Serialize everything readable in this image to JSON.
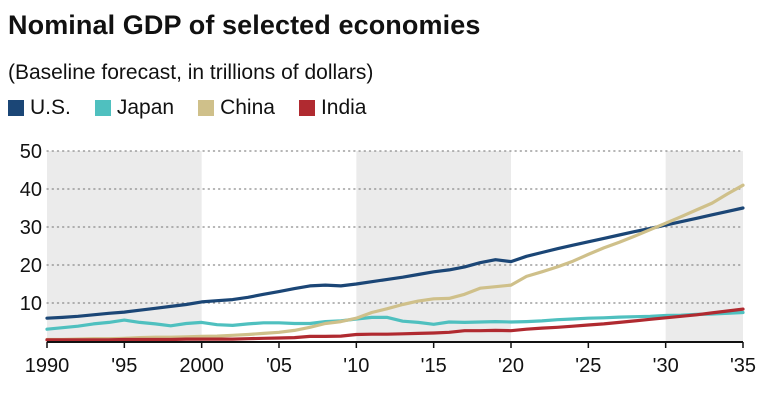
{
  "chart_data": {
    "type": "line",
    "title": "Nominal GDP of selected economies",
    "subtitle": "(Baseline forecast, in trillions of dollars)",
    "xlabel": "",
    "ylabel": "",
    "xlim": [
      1990,
      2035
    ],
    "ylim": [
      0,
      50
    ],
    "y_ticks": [
      10,
      20,
      30,
      40,
      50
    ],
    "y_tick_labels": [
      "10",
      "20",
      "30",
      "40",
      "50"
    ],
    "x_ticks": [
      1990,
      1995,
      2000,
      2005,
      2010,
      2015,
      2020,
      2025,
      2030,
      2035
    ],
    "x_tick_labels": [
      "1990",
      "'95",
      "2000",
      "'05",
      "'10",
      "'15",
      "'20",
      "'25",
      "'30",
      "'35"
    ],
    "grid": "horizontal dotted",
    "legend_position": "top-left",
    "shaded_periods": [
      [
        1990,
        2000
      ],
      [
        2010,
        2020
      ],
      [
        2030,
        2035
      ]
    ],
    "series": [
      {
        "name": "U.S.",
        "color": "#1b4676",
        "points": [
          [
            1990,
            6.0
          ],
          [
            1991,
            6.2
          ],
          [
            1992,
            6.5
          ],
          [
            1993,
            6.9
          ],
          [
            1994,
            7.3
          ],
          [
            1995,
            7.6
          ],
          [
            1996,
            8.1
          ],
          [
            1997,
            8.6
          ],
          [
            1998,
            9.1
          ],
          [
            1999,
            9.6
          ],
          [
            2000,
            10.3
          ],
          [
            2001,
            10.6
          ],
          [
            2002,
            10.9
          ],
          [
            2003,
            11.5
          ],
          [
            2004,
            12.3
          ],
          [
            2005,
            13.0
          ],
          [
            2006,
            13.8
          ],
          [
            2007,
            14.5
          ],
          [
            2008,
            14.7
          ],
          [
            2009,
            14.5
          ],
          [
            2010,
            15.0
          ],
          [
            2011,
            15.6
          ],
          [
            2012,
            16.2
          ],
          [
            2013,
            16.8
          ],
          [
            2014,
            17.5
          ],
          [
            2015,
            18.2
          ],
          [
            2016,
            18.7
          ],
          [
            2017,
            19.5
          ],
          [
            2018,
            20.6
          ],
          [
            2019,
            21.4
          ],
          [
            2020,
            20.9
          ],
          [
            2021,
            22.3
          ],
          [
            2022,
            23.3
          ],
          [
            2023,
            24.3
          ],
          [
            2024,
            25.2
          ],
          [
            2025,
            26.1
          ],
          [
            2026,
            27.0
          ],
          [
            2027,
            27.9
          ],
          [
            2028,
            28.8
          ],
          [
            2029,
            29.6
          ],
          [
            2030,
            30.5
          ],
          [
            2031,
            31.4
          ],
          [
            2032,
            32.3
          ],
          [
            2033,
            33.2
          ],
          [
            2034,
            34.1
          ],
          [
            2035,
            35.0
          ]
        ]
      },
      {
        "name": "Japan",
        "color": "#4fc0bf",
        "points": [
          [
            1990,
            3.1
          ],
          [
            1991,
            3.5
          ],
          [
            1992,
            3.9
          ],
          [
            1993,
            4.5
          ],
          [
            1994,
            4.9
          ],
          [
            1995,
            5.5
          ],
          [
            1996,
            4.9
          ],
          [
            1997,
            4.5
          ],
          [
            1998,
            4.0
          ],
          [
            1999,
            4.6
          ],
          [
            2000,
            4.9
          ],
          [
            2001,
            4.3
          ],
          [
            2002,
            4.1
          ],
          [
            2003,
            4.5
          ],
          [
            2004,
            4.8
          ],
          [
            2005,
            4.8
          ],
          [
            2006,
            4.6
          ],
          [
            2007,
            4.6
          ],
          [
            2008,
            5.1
          ],
          [
            2009,
            5.3
          ],
          [
            2010,
            5.8
          ],
          [
            2011,
            6.2
          ],
          [
            2012,
            6.2
          ],
          [
            2013,
            5.2
          ],
          [
            2014,
            4.9
          ],
          [
            2015,
            4.4
          ],
          [
            2016,
            5.0
          ],
          [
            2017,
            4.9
          ],
          [
            2018,
            5.0
          ],
          [
            2019,
            5.1
          ],
          [
            2020,
            5.0
          ],
          [
            2021,
            5.1
          ],
          [
            2022,
            5.3
          ],
          [
            2023,
            5.6
          ],
          [
            2024,
            5.8
          ],
          [
            2025,
            6.0
          ],
          [
            2026,
            6.1
          ],
          [
            2027,
            6.3
          ],
          [
            2028,
            6.4
          ],
          [
            2029,
            6.5
          ],
          [
            2030,
            6.7
          ],
          [
            2031,
            6.8
          ],
          [
            2032,
            7.0
          ],
          [
            2033,
            7.1
          ],
          [
            2034,
            7.3
          ],
          [
            2035,
            7.5
          ]
        ]
      },
      {
        "name": "China",
        "color": "#cfc08a",
        "points": [
          [
            1990,
            0.4
          ],
          [
            1991,
            0.4
          ],
          [
            1992,
            0.5
          ],
          [
            1993,
            0.6
          ],
          [
            1994,
            0.6
          ],
          [
            1995,
            0.7
          ],
          [
            1996,
            0.9
          ],
          [
            1997,
            1.0
          ],
          [
            1998,
            1.0
          ],
          [
            1999,
            1.1
          ],
          [
            2000,
            1.2
          ],
          [
            2001,
            1.3
          ],
          [
            2002,
            1.5
          ],
          [
            2003,
            1.7
          ],
          [
            2004,
            2.0
          ],
          [
            2005,
            2.3
          ],
          [
            2006,
            2.8
          ],
          [
            2007,
            3.6
          ],
          [
            2008,
            4.6
          ],
          [
            2009,
            5.1
          ],
          [
            2010,
            6.0
          ],
          [
            2011,
            7.5
          ],
          [
            2012,
            8.5
          ],
          [
            2013,
            9.6
          ],
          [
            2014,
            10.5
          ],
          [
            2015,
            11.1
          ],
          [
            2016,
            11.2
          ],
          [
            2017,
            12.3
          ],
          [
            2018,
            13.9
          ],
          [
            2019,
            14.3
          ],
          [
            2020,
            14.7
          ],
          [
            2021,
            17.0
          ],
          [
            2022,
            18.2
          ],
          [
            2023,
            19.5
          ],
          [
            2024,
            21.0
          ],
          [
            2025,
            22.8
          ],
          [
            2026,
            24.5
          ],
          [
            2027,
            26.0
          ],
          [
            2028,
            27.6
          ],
          [
            2029,
            29.3
          ],
          [
            2030,
            31.0
          ],
          [
            2031,
            32.7
          ],
          [
            2032,
            34.5
          ],
          [
            2033,
            36.3
          ],
          [
            2034,
            38.7
          ],
          [
            2035,
            41.0
          ]
        ]
      },
      {
        "name": "India",
        "color": "#b02a30",
        "points": [
          [
            1990,
            0.3
          ],
          [
            1991,
            0.3
          ],
          [
            1992,
            0.3
          ],
          [
            1993,
            0.3
          ],
          [
            1994,
            0.3
          ],
          [
            1995,
            0.4
          ],
          [
            1996,
            0.4
          ],
          [
            1997,
            0.4
          ],
          [
            1998,
            0.4
          ],
          [
            1999,
            0.5
          ],
          [
            2000,
            0.5
          ],
          [
            2001,
            0.5
          ],
          [
            2002,
            0.5
          ],
          [
            2003,
            0.6
          ],
          [
            2004,
            0.7
          ],
          [
            2005,
            0.8
          ],
          [
            2006,
            0.9
          ],
          [
            2007,
            1.2
          ],
          [
            2008,
            1.2
          ],
          [
            2009,
            1.3
          ],
          [
            2010,
            1.7
          ],
          [
            2011,
            1.8
          ],
          [
            2012,
            1.8
          ],
          [
            2013,
            1.9
          ],
          [
            2014,
            2.0
          ],
          [
            2015,
            2.1
          ],
          [
            2016,
            2.3
          ],
          [
            2017,
            2.7
          ],
          [
            2018,
            2.7
          ],
          [
            2019,
            2.8
          ],
          [
            2020,
            2.7
          ],
          [
            2021,
            3.1
          ],
          [
            2022,
            3.4
          ],
          [
            2023,
            3.6
          ],
          [
            2024,
            3.9
          ],
          [
            2025,
            4.2
          ],
          [
            2026,
            4.5
          ],
          [
            2027,
            4.9
          ],
          [
            2028,
            5.3
          ],
          [
            2029,
            5.7
          ],
          [
            2030,
            6.1
          ],
          [
            2031,
            6.5
          ],
          [
            2032,
            6.9
          ],
          [
            2033,
            7.4
          ],
          [
            2034,
            7.9
          ],
          [
            2035,
            8.4
          ]
        ]
      }
    ]
  }
}
